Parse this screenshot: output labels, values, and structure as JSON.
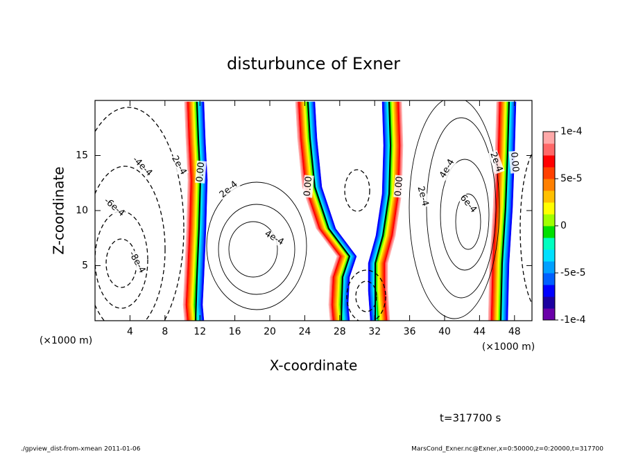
{
  "chart_data": {
    "type": "contour",
    "title": "disturbunce of Exner",
    "xlabel": "X-coordinate",
    "ylabel": "Z-coordinate",
    "x_unit": "(×1000 m)",
    "xlim": [
      0,
      50
    ],
    "ylim": [
      0,
      20
    ],
    "xticks": [
      4,
      8,
      12,
      16,
      20,
      24,
      28,
      32,
      36,
      40,
      44,
      48
    ],
    "yticks": [
      5,
      10,
      15
    ],
    "colorbar": {
      "clim": [
        -0.0001,
        0.0001
      ],
      "ticks": [
        {
          "value": 0.0001,
          "label": "1e-4"
        },
        {
          "value": 5e-05,
          "label": "5e-5"
        },
        0,
        {
          "value": -5e-05,
          "label": "-5e-5"
        },
        {
          "value": -0.0001,
          "label": "-1e-4"
        }
      ],
      "colors": [
        "#6a00a8",
        "#1c00a0",
        "#0000ff",
        "#0060ff",
        "#00a0ff",
        "#00e0ff",
        "#00ffc0",
        "#00e000",
        "#a0ff00",
        "#ffff00",
        "#ffc000",
        "#ff8000",
        "#ff4000",
        "#ff0000",
        "#ff6868",
        "#ffa8a8"
      ]
    },
    "contour_labels": [
      {
        "label": "-4e-4",
        "x": 5.4,
        "z": 14.0
      },
      {
        "label": "2e-4",
        "x": 9.6,
        "z": 14.1
      },
      {
        "label": "-6e-4",
        "x": 2.2,
        "z": 10.3
      },
      {
        "label": "-8e-4",
        "x": 4.8,
        "z": 5.3
      },
      {
        "label": "0.00",
        "x": 12.1,
        "z": 13.5
      },
      {
        "label": "2e-4",
        "x": 15.3,
        "z": 11.9
      },
      {
        "label": "4e-4",
        "x": 20.5,
        "z": 7.5
      },
      {
        "label": "0.00",
        "x": 24.4,
        "z": 12.2
      },
      {
        "label": "0.00",
        "x": 34.8,
        "z": 12.2
      },
      {
        "label": "2e-4",
        "x": 37.5,
        "z": 11.3
      },
      {
        "label": "4e-4",
        "x": 40.3,
        "z": 13.8
      },
      {
        "label": "6e-4",
        "x": 42.7,
        "z": 10.6
      },
      {
        "label": "2e-4",
        "x": 45.9,
        "z": 14.4
      },
      {
        "label": "0.00",
        "x": 48.0,
        "z": 14.4
      }
    ],
    "time_label": "t=317700 s",
    "footer_left": "./gpview_dist-from-xmean  2011-01-06",
    "footer_right": "MarsCond_Exner.nc@Exner,x=0:50000,z=0:20000,t=317700"
  }
}
